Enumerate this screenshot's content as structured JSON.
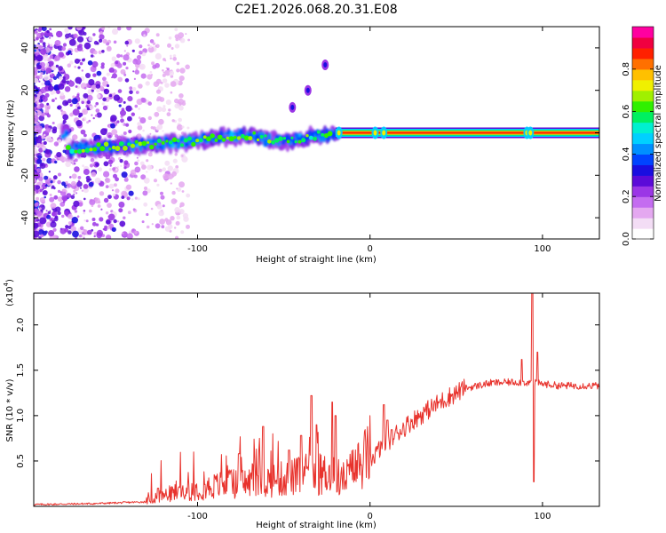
{
  "figure_title": "C2E1.2026.068.20.31.E08",
  "chart_data": [
    {
      "type": "heatmap",
      "title": "C2E1.2026.068.20.31.E08",
      "xlabel": "Height of straight line (km)",
      "ylabel": "Frequency (Hz)",
      "xlim": [
        -195,
        133
      ],
      "ylim": [
        -50,
        50
      ],
      "xticks": [
        -100,
        0,
        100
      ],
      "yticks": [
        -40,
        -20,
        0,
        20,
        40
      ],
      "colorbar": {
        "label": "Normalized spectral amplitude",
        "range": [
          0,
          1
        ],
        "ticks": [
          "0.0",
          "0.2",
          "0.4",
          "0.6",
          "0.8"
        ],
        "colors": [
          "#ffffff",
          "#f3ddf5",
          "#e4a8f0",
          "#c46cf0",
          "#9b36e6",
          "#5b0bd8",
          "#1a0ee0",
          "#0044ff",
          "#0090ff",
          "#00d0ff",
          "#00f0d0",
          "#00f060",
          "#30f000",
          "#a0f000",
          "#f0f000",
          "#ffc000",
          "#ff7000",
          "#ff2000",
          "#f00040",
          "#ff00a0"
        ]
      },
      "ridge": [
        {
          "x": -175,
          "freq": -8
        },
        {
          "x": -160,
          "freq": -7
        },
        {
          "x": -140,
          "freq": -6
        },
        {
          "x": -120,
          "freq": -5
        },
        {
          "x": -100,
          "freq": -4
        },
        {
          "x": -85,
          "freq": -2
        },
        {
          "x": -70,
          "freq": -1
        },
        {
          "x": -60,
          "freq": -3
        },
        {
          "x": -50,
          "freq": -4
        },
        {
          "x": -40,
          "freq": -3
        },
        {
          "x": -30,
          "freq": -1
        },
        {
          "x": -20,
          "freq": 0
        },
        {
          "x": 0,
          "freq": 0
        },
        {
          "x": 130,
          "freq": 0
        }
      ],
      "features": [
        {
          "label": "strong-constant-tone",
          "x_start": -20,
          "x_end": 133,
          "freq": 0
        },
        {
          "label": "blob-1",
          "x": -26,
          "freq": 32
        },
        {
          "label": "blob-2",
          "x": -36,
          "freq": 20
        },
        {
          "label": "blob-3",
          "x": -45,
          "freq": 12
        }
      ]
    },
    {
      "type": "line",
      "xlabel": "Height of straight line (km)",
      "ylabel": "SNR (10 * v/v)",
      "y_multiplier": "(x10",
      "y_multiplier_exp": "4",
      "xlim": [
        -195,
        133
      ],
      "ylim": [
        0,
        2.35
      ],
      "xticks": [
        -100,
        0,
        100
      ],
      "yticks": [
        "0.5",
        "1.0",
        "1.5",
        "2.0"
      ],
      "series": [
        {
          "name": "SNR",
          "color": "#e8322c",
          "envelope": [
            {
              "x": -195,
              "y": 0.02
            },
            {
              "x": -160,
              "y": 0.03
            },
            {
              "x": -130,
              "y": 0.05
            },
            {
              "x": -115,
              "y": 0.12
            },
            {
              "x": -100,
              "y": 0.16
            },
            {
              "x": -85,
              "y": 0.2
            },
            {
              "x": -70,
              "y": 0.22
            },
            {
              "x": -55,
              "y": 0.24
            },
            {
              "x": -40,
              "y": 0.28
            },
            {
              "x": -25,
              "y": 0.3
            },
            {
              "x": -15,
              "y": 0.25
            },
            {
              "x": -5,
              "y": 0.4
            },
            {
              "x": 5,
              "y": 0.62
            },
            {
              "x": 15,
              "y": 0.8
            },
            {
              "x": 25,
              "y": 0.95
            },
            {
              "x": 35,
              "y": 1.08
            },
            {
              "x": 45,
              "y": 1.2
            },
            {
              "x": 55,
              "y": 1.3
            },
            {
              "x": 70,
              "y": 1.36
            },
            {
              "x": 85,
              "y": 1.37
            },
            {
              "x": 95,
              "y": 1.36
            },
            {
              "x": 110,
              "y": 1.33
            },
            {
              "x": 133,
              "y": 1.33
            }
          ],
          "spikes": [
            {
              "x": -123,
              "y": 0.2
            },
            {
              "x": -76,
              "y": 0.58
            },
            {
              "x": -62,
              "y": 0.88
            },
            {
              "x": -47,
              "y": 0.62
            },
            {
              "x": -40,
              "y": 0.78
            },
            {
              "x": -34,
              "y": 1.22
            },
            {
              "x": -31,
              "y": 0.9
            },
            {
              "x": -22,
              "y": 1.15
            },
            {
              "x": -20,
              "y": 1.0
            },
            {
              "x": 8,
              "y": 1.12
            },
            {
              "x": 10,
              "y": 0.95
            },
            {
              "x": 88,
              "y": 1.62
            },
            {
              "x": 94,
              "y": 2.35
            },
            {
              "x": 95,
              "y": 0.27
            },
            {
              "x": 97,
              "y": 1.7
            }
          ]
        }
      ]
    }
  ]
}
